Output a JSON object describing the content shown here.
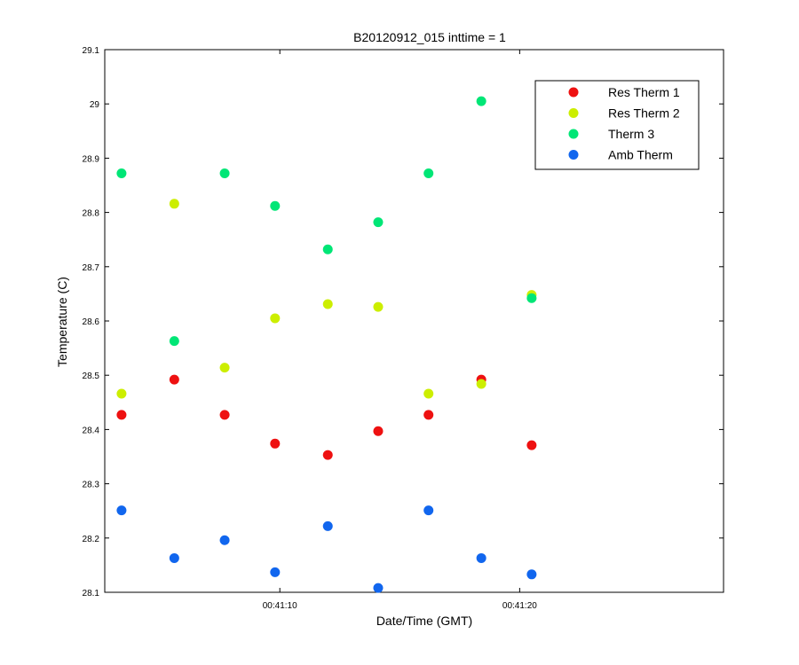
{
  "chart_data": {
    "type": "scatter",
    "title": "B20120912_015 inttime = 1",
    "xlabel": "Date/Time (GMT)",
    "ylabel": "Temperature (C)",
    "ylim": [
      28.1,
      29.1
    ],
    "yticks": [
      28.1,
      28.2,
      28.3,
      28.4,
      28.5,
      28.6,
      28.7,
      28.8,
      28.9,
      29,
      29.1
    ],
    "ytick_labels": [
      "28.1",
      "28.2",
      "28.3",
      "28.4",
      "28.5",
      "28.6",
      "28.7",
      "28.8",
      "28.9",
      "29",
      "29.1"
    ],
    "xlim": [
      "00:41:02.7",
      "00:41:28.5"
    ],
    "xticks": [
      "00:41:10",
      "00:41:20"
    ],
    "xtick_labels": [
      "00:41:10",
      "00:41:20"
    ],
    "x": [
      "00:41:03.4",
      "00:41:05.6",
      "00:41:07.7",
      "00:41:09.8",
      "00:41:12.0",
      "00:41:14.1",
      "00:41:16.2",
      "00:41:18.4",
      "00:41:20.5"
    ],
    "series": [
      {
        "name": "Res Therm 1",
        "color": "#ee1111",
        "values": [
          28.427,
          28.492,
          28.427,
          28.374,
          28.353,
          28.397,
          28.427,
          28.492,
          28.371
        ]
      },
      {
        "name": "Res Therm 2",
        "color": "#ccee00",
        "values": [
          28.466,
          28.816,
          28.514,
          28.605,
          28.631,
          28.626,
          28.466,
          28.484,
          28.648
        ]
      },
      {
        "name": "Therm 3",
        "color": "#00e676",
        "values": [
          28.872,
          28.563,
          28.872,
          28.812,
          28.732,
          28.782,
          28.872,
          29.005,
          28.642
        ]
      },
      {
        "name": "Amb Therm",
        "color": "#1166ee",
        "values": [
          28.251,
          28.163,
          28.196,
          28.137,
          28.222,
          28.108,
          28.251,
          28.163,
          28.133
        ]
      }
    ],
    "legend_position": "top-right",
    "grid": false
  }
}
